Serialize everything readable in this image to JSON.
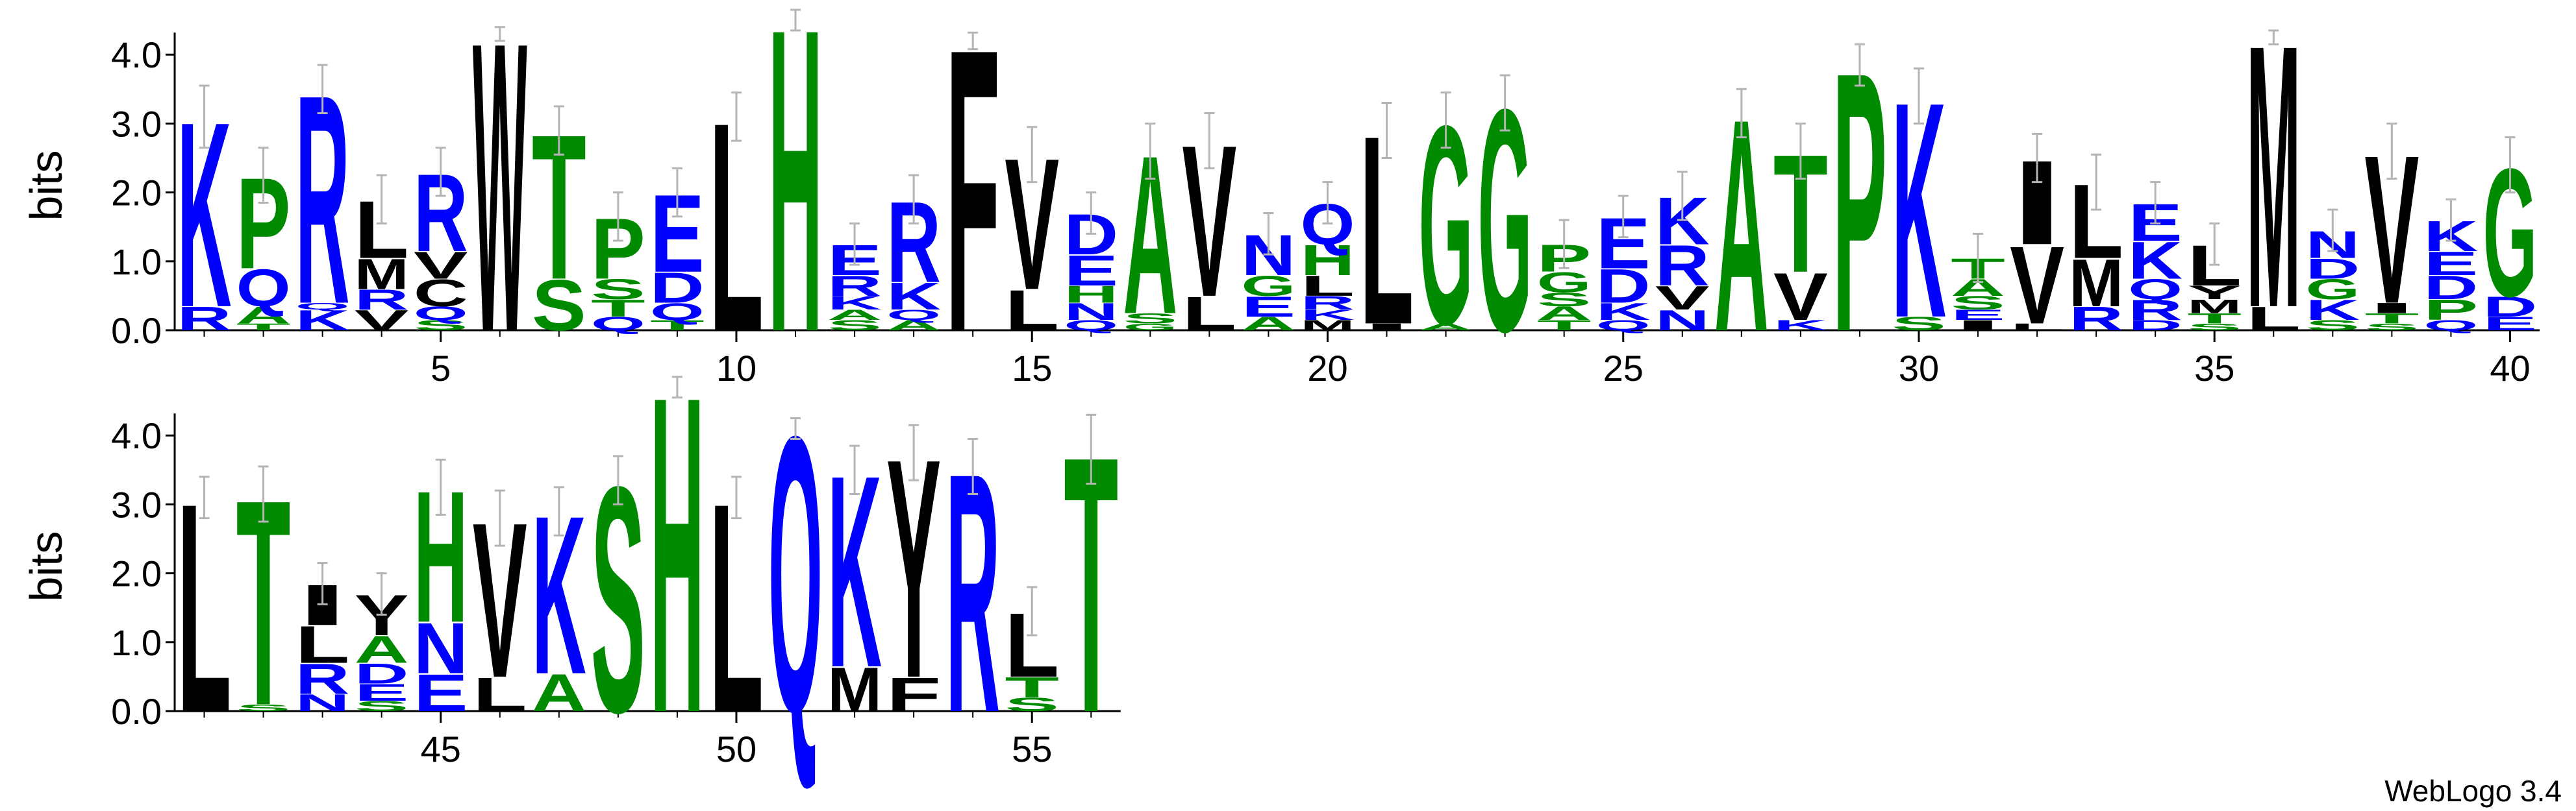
{
  "chart_data": [
    {
      "type": "logo",
      "ylabel": "bits",
      "xlim": [
        0.5,
        40.5
      ],
      "ylim": [
        0,
        4.32
      ],
      "yticks": [
        {
          "value": 0,
          "label": "0.0"
        },
        {
          "value": 1,
          "label": "1.0"
        },
        {
          "value": 2,
          "label": "2.0"
        },
        {
          "value": 3,
          "label": "3.0"
        },
        {
          "value": 4,
          "label": "4.0"
        }
      ],
      "xticks": [
        5,
        10,
        15,
        20,
        25,
        30,
        35,
        40
      ],
      "colors": {
        "K": "#0000ff",
        "R": "#0000ff",
        "D": "#0000ff",
        "E": "#0000ff",
        "Q": "#0000ff",
        "N": "#0000ff",
        "G": "#008a00",
        "S": "#008a00",
        "T": "#008a00",
        "A": "#008a00",
        "P": "#008a00",
        "H": "#008a00",
        "L": "#000000",
        "V": "#000000",
        "I": "#000000",
        "M": "#000000",
        "F": "#000000",
        "W": "#000000",
        "Y": "#000000",
        "C": "#000000"
      },
      "x": [
        1,
        2,
        3,
        4,
        5,
        6,
        7,
        8,
        9,
        10,
        11,
        12,
        13,
        14,
        15,
        16,
        17,
        18,
        19,
        20,
        21,
        22,
        23,
        24,
        25,
        26,
        27,
        28,
        29,
        30,
        31,
        32,
        33,
        34,
        35,
        36,
        37,
        38,
        39,
        40
      ],
      "stacks": [
        [
          {
            "letter": "R",
            "bits": 0.35
          },
          {
            "letter": "K",
            "bits": 2.75
          }
        ],
        [
          {
            "letter": "T",
            "bits": 0.1
          },
          {
            "letter": "A",
            "bits": 0.25
          },
          {
            "letter": "Q",
            "bits": 0.55
          },
          {
            "letter": "P",
            "bits": 1.35
          }
        ],
        [
          {
            "letter": "K",
            "bits": 0.3
          },
          {
            "letter": "Q",
            "bits": 0.1
          },
          {
            "letter": "R",
            "bits": 3.1
          }
        ],
        [
          {
            "letter": "V",
            "bits": 0.3
          },
          {
            "letter": "R",
            "bits": 0.3
          },
          {
            "letter": "M",
            "bits": 0.45
          },
          {
            "letter": "L",
            "bits": 0.85
          }
        ],
        [
          {
            "letter": "S",
            "bits": 0.15
          },
          {
            "letter": "Q",
            "bits": 0.2
          },
          {
            "letter": "C",
            "bits": 0.4
          },
          {
            "letter": "V",
            "bits": 0.4
          },
          {
            "letter": "R",
            "bits": 1.15
          }
        ],
        [
          {
            "letter": "W",
            "bits": 4.3
          }
        ],
        [
          {
            "letter": "S",
            "bits": 0.75
          },
          {
            "letter": "T",
            "bits": 2.15
          }
        ],
        [
          {
            "letter": "Q",
            "bits": 0.2
          },
          {
            "letter": "T",
            "bits": 0.25
          },
          {
            "letter": "S",
            "bits": 0.3
          },
          {
            "letter": "P",
            "bits": 0.9
          }
        ],
        [
          {
            "letter": "T",
            "bits": 0.15
          },
          {
            "letter": "Q",
            "bits": 0.25
          },
          {
            "letter": "D",
            "bits": 0.45
          },
          {
            "letter": "E",
            "bits": 1.15
          }
        ],
        [
          {
            "letter": "L",
            "bits": 3.1
          }
        ],
        [
          {
            "letter": "H",
            "bits": 4.5
          }
        ],
        [
          {
            "letter": "S",
            "bits": 0.15
          },
          {
            "letter": "A",
            "bits": 0.15
          },
          {
            "letter": "K",
            "bits": 0.2
          },
          {
            "letter": "R",
            "bits": 0.3
          },
          {
            "letter": "E",
            "bits": 0.45
          }
        ],
        [
          {
            "letter": "A",
            "bits": 0.15
          },
          {
            "letter": "Q",
            "bits": 0.15
          },
          {
            "letter": "K",
            "bits": 0.4
          },
          {
            "letter": "R",
            "bits": 1.2
          }
        ],
        [
          {
            "letter": "F",
            "bits": 4.2
          }
        ],
        [
          {
            "letter": "L",
            "bits": 0.6
          },
          {
            "letter": "V",
            "bits": 1.95
          }
        ],
        [
          {
            "letter": "Q",
            "bits": 0.15
          },
          {
            "letter": "N",
            "bits": 0.25
          },
          {
            "letter": "H",
            "bits": 0.25
          },
          {
            "letter": "E",
            "bits": 0.45
          },
          {
            "letter": "D",
            "bits": 0.6
          }
        ],
        [
          {
            "letter": "G",
            "bits": 0.1
          },
          {
            "letter": "S",
            "bits": 0.15
          },
          {
            "letter": "A",
            "bits": 2.35
          }
        ],
        [
          {
            "letter": "L",
            "bits": 0.5
          },
          {
            "letter": "V",
            "bits": 2.25
          }
        ],
        [
          {
            "letter": "A",
            "bits": 0.2
          },
          {
            "letter": "E",
            "bits": 0.3
          },
          {
            "letter": "G",
            "bits": 0.3
          },
          {
            "letter": "N",
            "bits": 0.6
          }
        ],
        [
          {
            "letter": "M",
            "bits": 0.15
          },
          {
            "letter": "K",
            "bits": 0.15
          },
          {
            "letter": "R",
            "bits": 0.2
          },
          {
            "letter": "L",
            "bits": 0.3
          },
          {
            "letter": "H",
            "bits": 0.45
          },
          {
            "letter": "Q",
            "bits": 0.6
          }
        ],
        [
          {
            "letter": "I",
            "bits": 0.1
          },
          {
            "letter": "L",
            "bits": 2.8
          }
        ],
        [
          {
            "letter": "A",
            "bits": 0.1
          },
          {
            "letter": "G",
            "bits": 2.95
          }
        ],
        [
          {
            "letter": "G",
            "bits": 3.3
          }
        ],
        [
          {
            "letter": "T",
            "bits": 0.15
          },
          {
            "letter": "A",
            "bits": 0.2
          },
          {
            "letter": "S",
            "bits": 0.2
          },
          {
            "letter": "G",
            "bits": 0.3
          },
          {
            "letter": "P",
            "bits": 0.4
          }
        ],
        [
          {
            "letter": "Q",
            "bits": 0.15
          },
          {
            "letter": "K",
            "bits": 0.25
          },
          {
            "letter": "D",
            "bits": 0.5
          },
          {
            "letter": "E",
            "bits": 0.75
          }
        ],
        [
          {
            "letter": "N",
            "bits": 0.3
          },
          {
            "letter": "V",
            "bits": 0.35
          },
          {
            "letter": "R",
            "bits": 0.6
          },
          {
            "letter": "K",
            "bits": 0.7
          }
        ],
        [
          {
            "letter": "A",
            "bits": 3.15
          }
        ],
        [
          {
            "letter": "K",
            "bits": 0.15
          },
          {
            "letter": "V",
            "bits": 0.7
          },
          {
            "letter": "T",
            "bits": 1.75
          }
        ],
        [
          {
            "letter": "P",
            "bits": 3.85
          }
        ],
        [
          {
            "letter": "S",
            "bits": 0.2
          },
          {
            "letter": "K",
            "bits": 3.2
          }
        ],
        [
          {
            "letter": "I",
            "bits": 0.15
          },
          {
            "letter": "E",
            "bits": 0.15
          },
          {
            "letter": "S",
            "bits": 0.2
          },
          {
            "letter": "A",
            "bits": 0.25
          },
          {
            "letter": "T",
            "bits": 0.3
          }
        ],
        [
          {
            "letter": "L",
            "bits": 0.1
          },
          {
            "letter": "V",
            "bits": 1.15
          },
          {
            "letter": "I",
            "bits": 1.25
          }
        ],
        [
          {
            "letter": "R",
            "bits": 0.35
          },
          {
            "letter": "M",
            "bits": 0.7
          },
          {
            "letter": "L",
            "bits": 1.1
          }
        ],
        [
          {
            "letter": "D",
            "bits": 0.15
          },
          {
            "letter": "R",
            "bits": 0.3
          },
          {
            "letter": "Q",
            "bits": 0.3
          },
          {
            "letter": "K",
            "bits": 0.55
          },
          {
            "letter": "E",
            "bits": 0.55
          }
        ],
        [
          {
            "letter": "S",
            "bits": 0.1
          },
          {
            "letter": "T",
            "bits": 0.15
          },
          {
            "letter": "M",
            "bits": 0.2
          },
          {
            "letter": "Y",
            "bits": 0.2
          },
          {
            "letter": "L",
            "bits": 0.6
          }
        ],
        [
          {
            "letter": "L",
            "bits": 0.35
          },
          {
            "letter": "M",
            "bits": 3.9
          }
        ],
        [
          {
            "letter": "S",
            "bits": 0.15
          },
          {
            "letter": "K",
            "bits": 0.3
          },
          {
            "letter": "G",
            "bits": 0.3
          },
          {
            "letter": "D",
            "bits": 0.3
          },
          {
            "letter": "N",
            "bits": 0.4
          }
        ],
        [
          {
            "letter": "S",
            "bits": 0.1
          },
          {
            "letter": "T",
            "bits": 0.15
          },
          {
            "letter": "I",
            "bits": 0.15
          },
          {
            "letter": "V",
            "bits": 2.2
          }
        ],
        [
          {
            "letter": "Q",
            "bits": 0.15
          },
          {
            "letter": "P",
            "bits": 0.3
          },
          {
            "letter": "D",
            "bits": 0.35
          },
          {
            "letter": "E",
            "bits": 0.35
          },
          {
            "letter": "K",
            "bits": 0.45
          }
        ],
        [
          {
            "letter": "E",
            "bits": 0.2
          },
          {
            "letter": "D",
            "bits": 0.3
          },
          {
            "letter": "G",
            "bits": 1.9
          }
        ]
      ],
      "errors": [
        0.45,
        0.4,
        0.35,
        0.35,
        0.35,
        0.1,
        0.35,
        0.35,
        0.35,
        0.35,
        0.15,
        0.3,
        0.35,
        0.12,
        0.4,
        0.3,
        0.4,
        0.4,
        0.3,
        0.3,
        0.4,
        0.4,
        0.4,
        0.35,
        0.3,
        0.35,
        0.35,
        0.4,
        0.3,
        0.4,
        0.35,
        0.35,
        0.4,
        0.3,
        0.3,
        0.1,
        0.3,
        0.4,
        0.3,
        0.4
      ]
    },
    {
      "type": "logo",
      "ylabel": "bits",
      "xlim": [
        40.5,
        56.5
      ],
      "ylim": [
        0,
        4.32
      ],
      "yticks": [
        {
          "value": 0,
          "label": "0.0"
        },
        {
          "value": 1,
          "label": "1.0"
        },
        {
          "value": 2,
          "label": "2.0"
        },
        {
          "value": 3,
          "label": "3.0"
        },
        {
          "value": 4,
          "label": "4.0"
        }
      ],
      "xticks": [
        45,
        50,
        55
      ],
      "colors": {
        "K": "#0000ff",
        "R": "#0000ff",
        "D": "#0000ff",
        "E": "#0000ff",
        "Q": "#0000ff",
        "N": "#0000ff",
        "G": "#008a00",
        "S": "#008a00",
        "T": "#008a00",
        "A": "#008a00",
        "P": "#008a00",
        "H": "#008a00",
        "L": "#000000",
        "V": "#000000",
        "I": "#000000",
        "M": "#000000",
        "F": "#000000",
        "W": "#000000",
        "Y": "#000000",
        "C": "#000000"
      },
      "x": [
        41,
        42,
        43,
        44,
        45,
        46,
        47,
        48,
        49,
        50,
        51,
        52,
        53,
        54,
        55,
        56
      ],
      "stacks": [
        [
          {
            "letter": "L",
            "bits": 3.1
          }
        ],
        [
          {
            "letter": "S",
            "bits": 0.1
          },
          {
            "letter": "T",
            "bits": 3.05
          }
        ],
        [
          {
            "letter": "N",
            "bits": 0.25
          },
          {
            "letter": "R",
            "bits": 0.45
          },
          {
            "letter": "L",
            "bits": 0.55
          },
          {
            "letter": "I",
            "bits": 0.6
          }
        ],
        [
          {
            "letter": "S",
            "bits": 0.15
          },
          {
            "letter": "E",
            "bits": 0.25
          },
          {
            "letter": "D",
            "bits": 0.3
          },
          {
            "letter": "A",
            "bits": 0.4
          },
          {
            "letter": "Y",
            "bits": 0.6
          }
        ],
        [
          {
            "letter": "E",
            "bits": 0.55
          },
          {
            "letter": "N",
            "bits": 0.75
          },
          {
            "letter": "H",
            "bits": 1.95
          }
        ],
        [
          {
            "letter": "L",
            "bits": 0.5
          },
          {
            "letter": "V",
            "bits": 2.3
          }
        ],
        [
          {
            "letter": "A",
            "bits": 0.55
          },
          {
            "letter": "K",
            "bits": 2.35
          }
        ],
        [
          {
            "letter": "S",
            "bits": 3.35
          }
        ],
        [
          {
            "letter": "H",
            "bits": 4.7
          }
        ],
        [
          {
            "letter": "L",
            "bits": 3.1
          }
        ],
        [
          {
            "letter": "Q",
            "bits": 4.1
          }
        ],
        [
          {
            "letter": "M",
            "bits": 0.65
          },
          {
            "letter": "K",
            "bits": 2.85
          }
        ],
        [
          {
            "letter": "F",
            "bits": 0.5
          },
          {
            "letter": "Y",
            "bits": 3.25
          }
        ],
        [
          {
            "letter": "R",
            "bits": 3.55
          }
        ],
        [
          {
            "letter": "S",
            "bits": 0.2
          },
          {
            "letter": "T",
            "bits": 0.3
          },
          {
            "letter": "L",
            "bits": 0.95
          }
        ],
        [
          {
            "letter": "T",
            "bits": 3.8
          }
        ]
      ],
      "errors": [
        0.3,
        0.4,
        0.3,
        0.3,
        0.4,
        0.4,
        0.35,
        0.35,
        0.15,
        0.3,
        0.15,
        0.35,
        0.4,
        0.4,
        0.35,
        0.5
      ]
    }
  ],
  "footer": "WebLogo 3.4"
}
